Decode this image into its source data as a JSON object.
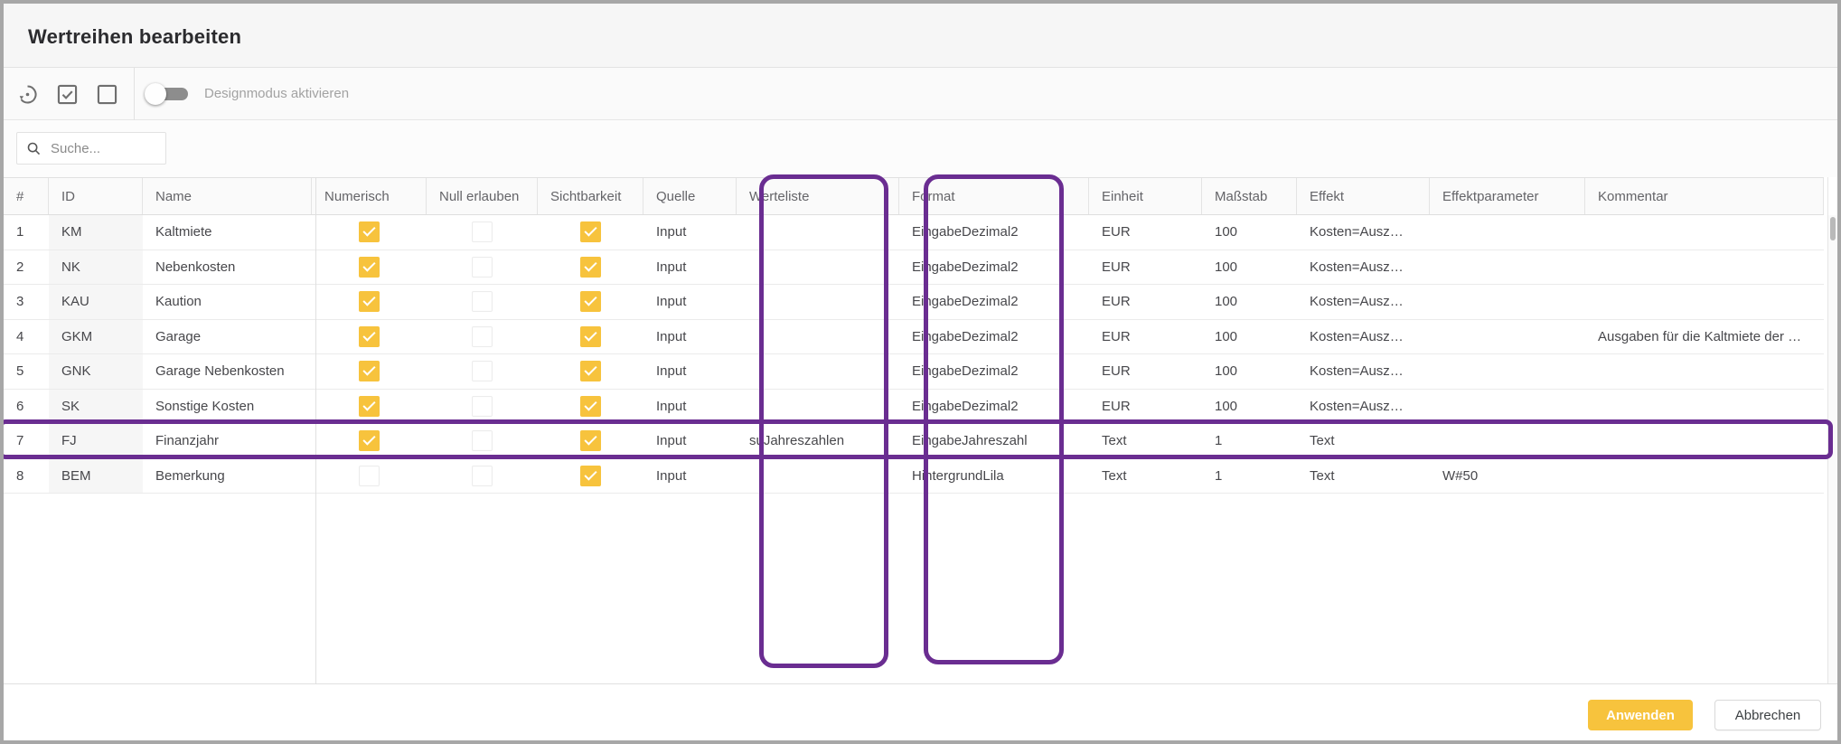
{
  "window": {
    "title": "Wertreihen bearbeiten"
  },
  "toolbar": {
    "icons": [
      {
        "name": "restore-icon",
        "meaning": "reset / restore defaults"
      },
      {
        "name": "checkbox-checked-icon",
        "meaning": "select all"
      },
      {
        "name": "checkbox-blank-icon",
        "meaning": "deselect all"
      }
    ],
    "toggle_label": "Designmodus aktivieren",
    "toggle_state": "off"
  },
  "search": {
    "placeholder": "Suche...",
    "value": ""
  },
  "table": {
    "columns": [
      {
        "key": "num",
        "label": "#",
        "type": "text"
      },
      {
        "key": "id",
        "label": "ID",
        "type": "text"
      },
      {
        "key": "name",
        "label": "Name",
        "type": "text"
      },
      {
        "key": "numerisch",
        "label": "Numerisch",
        "type": "check"
      },
      {
        "key": "null_erlauben",
        "label": "Null erlauben",
        "type": "check"
      },
      {
        "key": "sichtbarkeit",
        "label": "Sichtbarkeit",
        "type": "check"
      },
      {
        "key": "quelle",
        "label": "Quelle",
        "type": "text"
      },
      {
        "key": "werteliste",
        "label": "Werteliste",
        "type": "text"
      },
      {
        "key": "format",
        "label": "Format",
        "type": "text"
      },
      {
        "key": "einheit",
        "label": "Einheit",
        "type": "text"
      },
      {
        "key": "massstab",
        "label": "Maßstab",
        "type": "text"
      },
      {
        "key": "effekt",
        "label": "Effekt",
        "type": "text"
      },
      {
        "key": "effektparameter",
        "label": "Effektparameter",
        "type": "text"
      },
      {
        "key": "kommentar",
        "label": "Kommentar",
        "type": "text"
      }
    ],
    "rows": [
      {
        "num": "1",
        "id": "KM",
        "name": "Kaltmiete",
        "numerisch": true,
        "null_erlauben": false,
        "sichtbarkeit": true,
        "quelle": "Input",
        "werteliste": "",
        "format": "EingabeDezimal2",
        "einheit": "EUR",
        "massstab": "100",
        "effekt": "Kosten=Ausz…",
        "effektparameter": "",
        "kommentar": ""
      },
      {
        "num": "2",
        "id": "NK",
        "name": "Nebenkosten",
        "numerisch": true,
        "null_erlauben": false,
        "sichtbarkeit": true,
        "quelle": "Input",
        "werteliste": "",
        "format": "EingabeDezimal2",
        "einheit": "EUR",
        "massstab": "100",
        "effekt": "Kosten=Ausz…",
        "effektparameter": "",
        "kommentar": ""
      },
      {
        "num": "3",
        "id": "KAU",
        "name": "Kaution",
        "numerisch": true,
        "null_erlauben": false,
        "sichtbarkeit": true,
        "quelle": "Input",
        "werteliste": "",
        "format": "EingabeDezimal2",
        "einheit": "EUR",
        "massstab": "100",
        "effekt": "Kosten=Ausz…",
        "effektparameter": "",
        "kommentar": ""
      },
      {
        "num": "4",
        "id": "GKM",
        "name": "Garage",
        "numerisch": true,
        "null_erlauben": false,
        "sichtbarkeit": true,
        "quelle": "Input",
        "werteliste": "",
        "format": "EingabeDezimal2",
        "einheit": "EUR",
        "massstab": "100",
        "effekt": "Kosten=Ausz…",
        "effektparameter": "",
        "kommentar": "Ausgaben für die Kaltmiete der …"
      },
      {
        "num": "5",
        "id": "GNK",
        "name": "Garage Nebenkosten",
        "numerisch": true,
        "null_erlauben": false,
        "sichtbarkeit": true,
        "quelle": "Input",
        "werteliste": "",
        "format": "EingabeDezimal2",
        "einheit": "EUR",
        "massstab": "100",
        "effekt": "Kosten=Ausz…",
        "effektparameter": "",
        "kommentar": ""
      },
      {
        "num": "6",
        "id": "SK",
        "name": "Sonstige Kosten",
        "numerisch": true,
        "null_erlauben": false,
        "sichtbarkeit": true,
        "quelle": "Input",
        "werteliste": "",
        "format": "EingabeDezimal2",
        "einheit": "EUR",
        "massstab": "100",
        "effekt": "Kosten=Ausz…",
        "effektparameter": "",
        "kommentar": ""
      },
      {
        "num": "7",
        "id": "FJ",
        "name": "Finanzjahr",
        "numerisch": true,
        "null_erlauben": false,
        "sichtbarkeit": true,
        "quelle": "Input",
        "werteliste": "suJahreszahlen",
        "format": "EingabeJahreszahl",
        "einheit": "Text",
        "massstab": "1",
        "effekt": "Text",
        "effektparameter": "",
        "kommentar": ""
      },
      {
        "num": "8",
        "id": "BEM",
        "name": "Bemerkung",
        "numerisch": false,
        "null_erlauben": false,
        "sichtbarkeit": true,
        "quelle": "Input",
        "werteliste": "",
        "format": "HintergrundLila",
        "einheit": "Text",
        "massstab": "1",
        "effekt": "Text",
        "effektparameter": "W#50",
        "kommentar": ""
      }
    ]
  },
  "annotations": {
    "highlighted_columns": [
      "Werteliste",
      "Format"
    ],
    "highlighted_row": "7"
  },
  "footer": {
    "apply_label": "Anwenden",
    "cancel_label": "Abbrechen"
  },
  "colors": {
    "accent": "#f7c33d",
    "highlight": "#6a2d91"
  }
}
